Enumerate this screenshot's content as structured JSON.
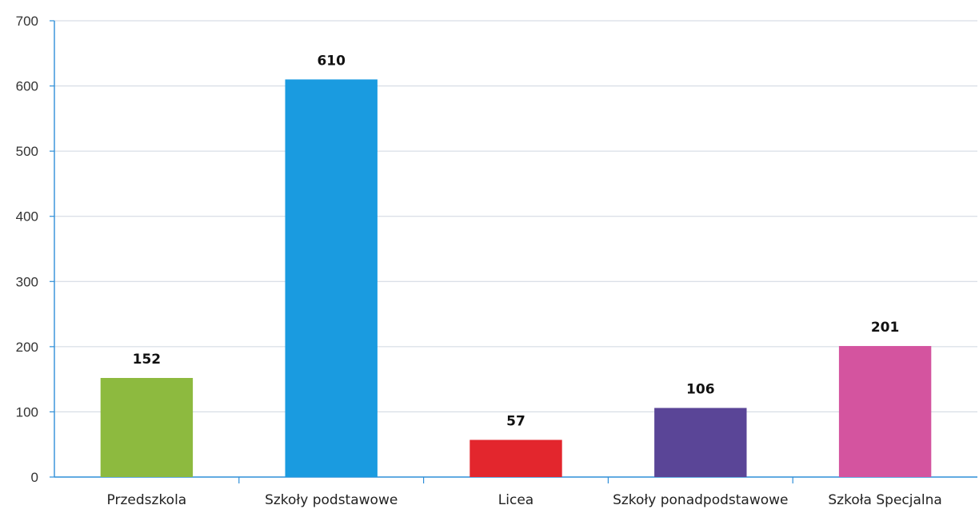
{
  "chart_data": {
    "type": "bar",
    "title": "",
    "xlabel": "",
    "ylabel": "",
    "categories": [
      "Przedszkola",
      "Szkoły podstawowe",
      "Licea",
      "Szkoły ponadpodstawowe",
      "Szkoła Specjalna"
    ],
    "values": [
      152,
      610,
      57,
      106,
      201
    ],
    "colors": [
      "#8dba3f",
      "#1a9be0",
      "#e3262d",
      "#5a4597",
      "#d4549f"
    ],
    "ylim": [
      0,
      700
    ],
    "yticks": [
      0,
      100,
      200,
      300,
      400,
      500,
      600,
      700
    ],
    "grid": true,
    "legend": "none",
    "data_labels": true
  }
}
